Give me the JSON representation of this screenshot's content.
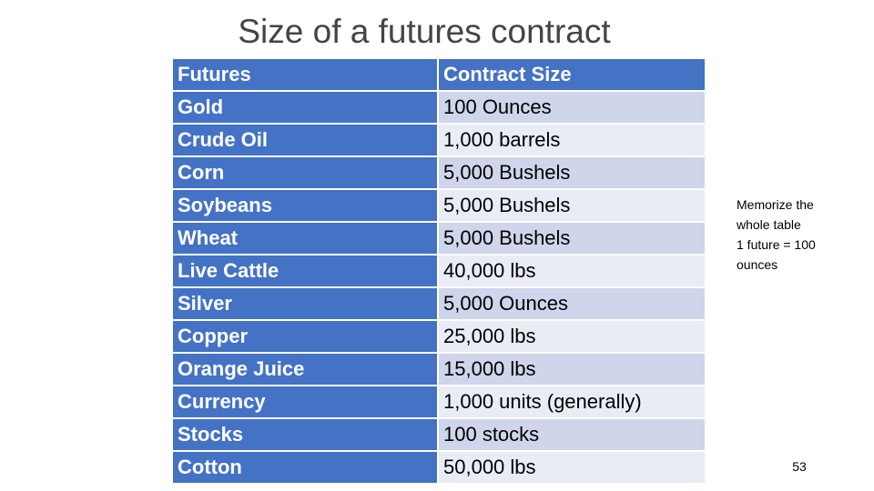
{
  "title": "Size of a futures contract",
  "table": {
    "header": [
      "Futures",
      "Contract Size"
    ],
    "rows": [
      [
        "Gold",
        "100 Ounces"
      ],
      [
        "Crude Oil",
        "1,000 barrels"
      ],
      [
        "Corn",
        "5,000 Bushels"
      ],
      [
        "Soybeans",
        "5,000 Bushels"
      ],
      [
        "Wheat",
        "5,000 Bushels"
      ],
      [
        "Live Cattle",
        "40,000 lbs"
      ],
      [
        "Silver",
        "5,000 Ounces"
      ],
      [
        "Copper",
        "25,000 lbs"
      ],
      [
        "Orange Juice",
        "15,000 lbs"
      ],
      [
        "Currency",
        "1,000 units (generally)"
      ],
      [
        "Stocks",
        "100 stocks"
      ],
      [
        "Cotton",
        "50,000 lbs"
      ]
    ]
  },
  "notes": [
    "Memorize the whole table",
    "1 future = 100 ounces"
  ],
  "page_number": "53"
}
